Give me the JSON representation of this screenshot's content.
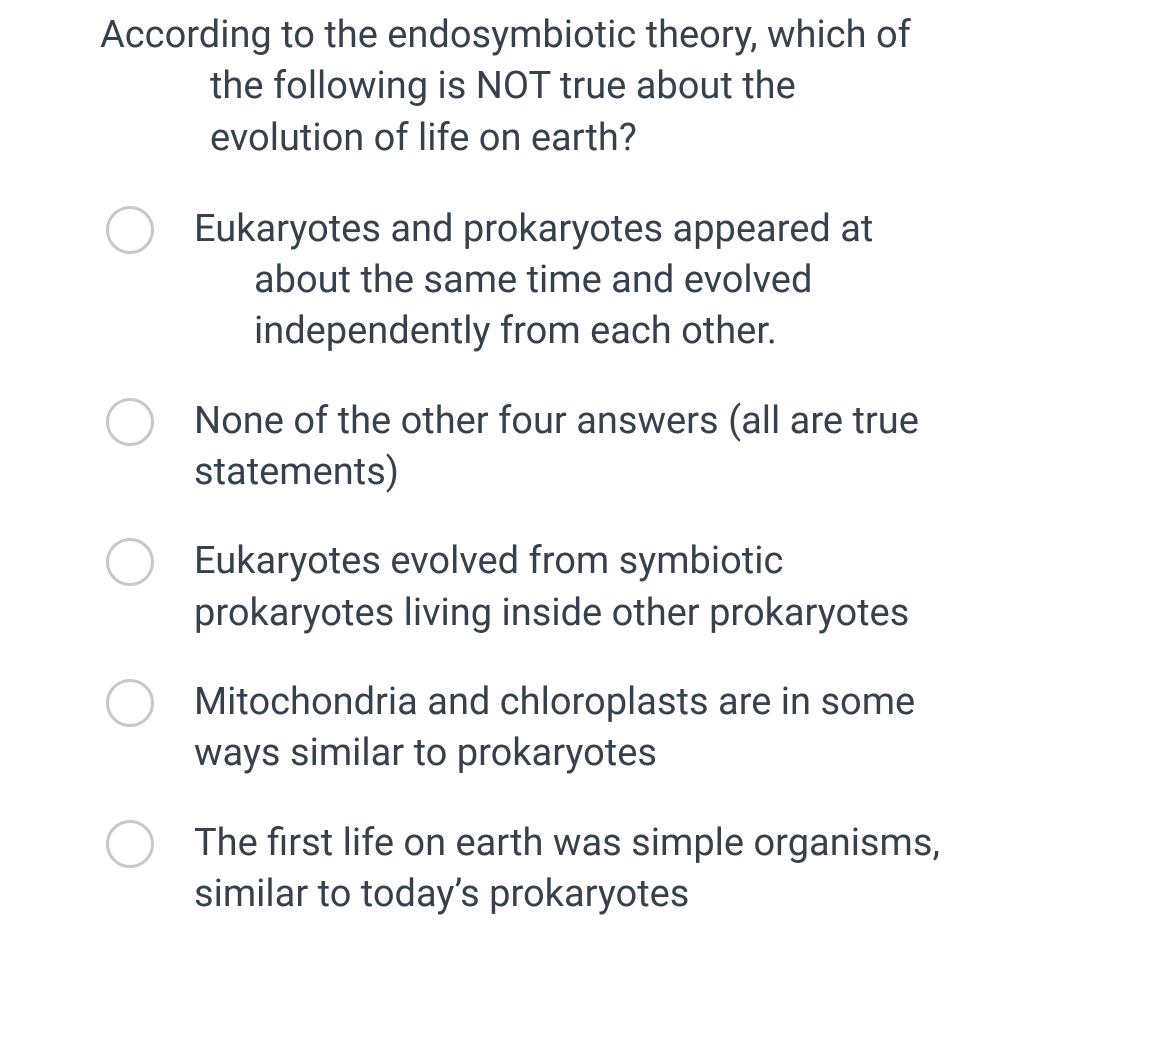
{
  "question": {
    "line1": "According to the endosymbiotic theory, which of",
    "line2": "the following is NOT true about the",
    "line3": "evolution of life on earth?"
  },
  "options": [
    {
      "line1": "Eukaryotes and prokaryotes appeared at",
      "line2": "about the same time and evolved",
      "line3": "independently from each other.",
      "indented": true
    },
    {
      "line1": "None of the other four answers (all are true",
      "line2": "statements)",
      "indented": false
    },
    {
      "line1": "Eukaryotes evolved from symbiotic",
      "line2": "prokaryotes living inside other prokaryotes",
      "indented": false
    },
    {
      "line1": "Mitochondria and chloroplasts are in some",
      "line2": "ways similar to prokaryotes",
      "indented": false
    },
    {
      "line1": "The first life on earth was simple organisms,",
      "line2": "similar to today’s prokaryotes",
      "indented": false
    }
  ],
  "colors": {
    "text": "#37414d",
    "radio_border": "#c5c9cc",
    "background": "#ffffff"
  }
}
